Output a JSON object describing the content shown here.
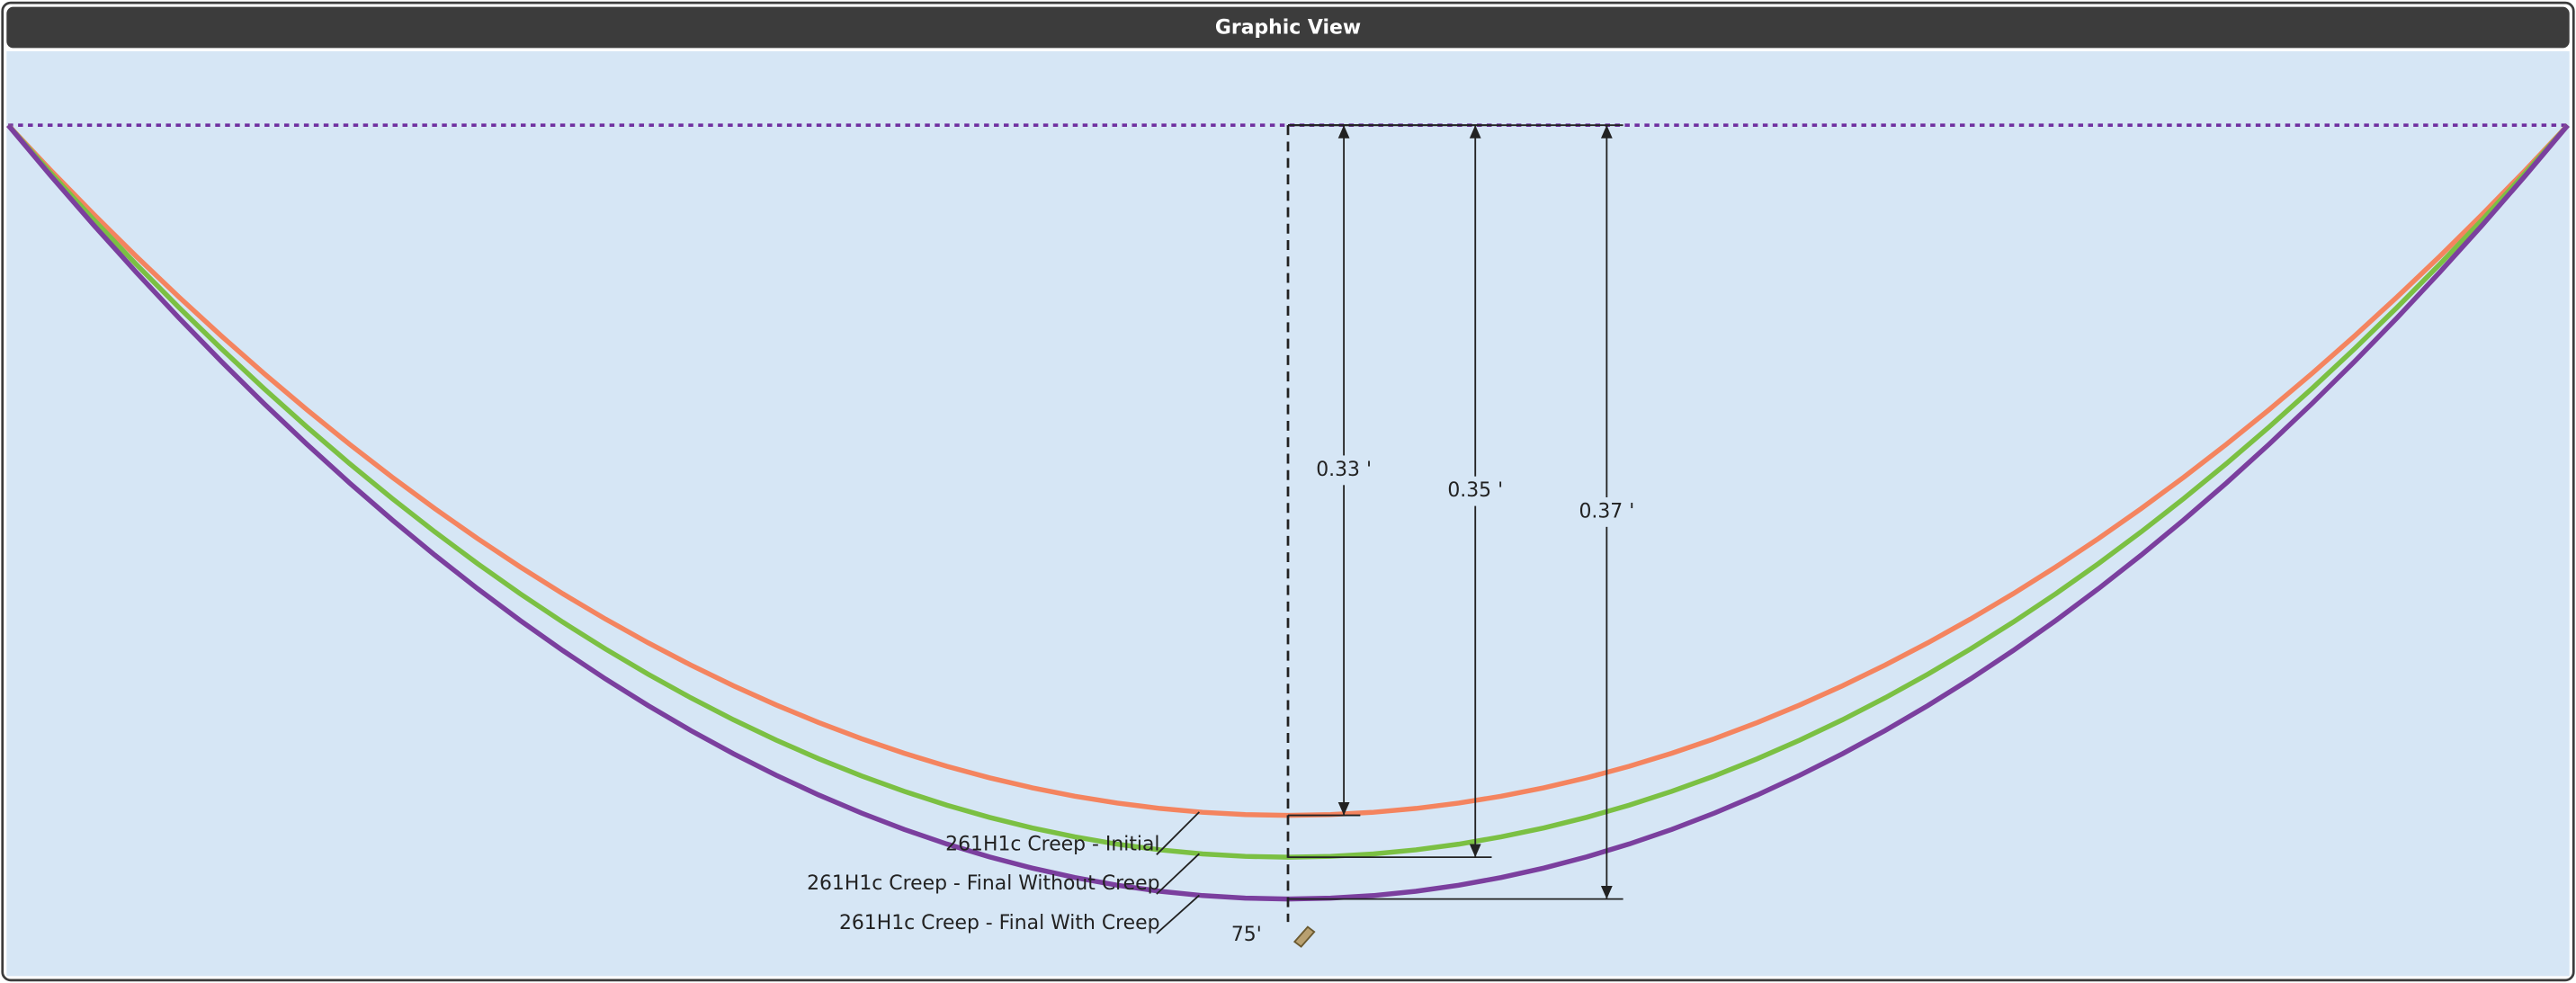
{
  "panel": {
    "title": "Graphic View"
  },
  "chart_data": {
    "type": "sag",
    "xlim": [
      0,
      150
    ],
    "ylim": [
      0,
      0.41
    ],
    "xticks": [
      {
        "value": 75,
        "label": "75'"
      }
    ],
    "series": [
      {
        "name": "261H1c Creep - Initial",
        "color": "#f4845f",
        "values": [
          0.33
        ],
        "value_labels": [
          "0.33 '"
        ]
      },
      {
        "name": "261H1c Creep - Final Without Creep",
        "color": "#7bc043",
        "values": [
          0.35
        ],
        "value_labels": [
          "0.35 '"
        ]
      },
      {
        "name": "261H1c Creep - Final With Creep",
        "color": "#7b3f9e",
        "values": [
          0.37
        ],
        "value_labels": [
          "0.37 '"
        ]
      }
    ],
    "reference_line_color": "#7030a0"
  }
}
